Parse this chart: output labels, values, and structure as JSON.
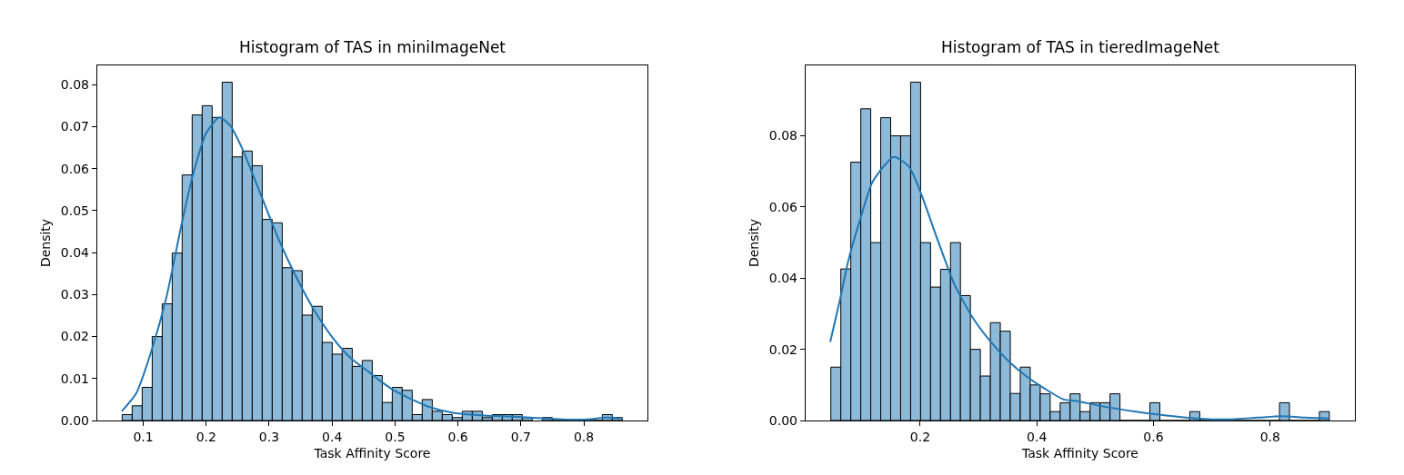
{
  "chart_data": [
    {
      "type": "histogram",
      "title": "Histogram of TAS in miniImageNet",
      "xlabel": "Task Affinity Score",
      "ylabel": "Density",
      "color": "#8ebad9",
      "bins": [
        0.0665,
        0.0824,
        0.0983,
        0.1142,
        0.1301,
        0.146,
        0.1618,
        0.1777,
        0.1936,
        0.2095,
        0.2254,
        0.2413,
        0.2572,
        0.2731,
        0.289,
        0.3049,
        0.3208,
        0.3366,
        0.3525,
        0.3684,
        0.3843,
        0.4002,
        0.4161,
        0.432,
        0.4479,
        0.4638,
        0.4797,
        0.4956,
        0.5114,
        0.5273,
        0.5432,
        0.5591,
        0.575,
        0.5909,
        0.6068,
        0.6227,
        0.6386,
        0.6545,
        0.6704,
        0.6862,
        0.7021,
        0.718,
        0.7339,
        0.7498,
        0.7657,
        0.7816,
        0.7975,
        0.8134,
        0.8293,
        0.8452,
        0.861
      ],
      "values": [
        0.0014,
        0.0035,
        0.0079,
        0.02,
        0.0278,
        0.0399,
        0.0585,
        0.0728,
        0.075,
        0.0722,
        0.0806,
        0.0628,
        0.0642,
        0.0607,
        0.0479,
        0.0471,
        0.0364,
        0.0357,
        0.0251,
        0.0272,
        0.0186,
        0.0158,
        0.0172,
        0.0129,
        0.0143,
        0.0107,
        0.0043,
        0.0079,
        0.0072,
        0.0014,
        0.005,
        0.0022,
        0.0014,
        0.0007,
        0.0022,
        0.0022,
        0.0007,
        0.0014,
        0.0014,
        0.0014,
        0.0007,
        null,
        0.0007,
        0,
        0,
        0,
        0,
        0,
        0.0014,
        0.0007
      ],
      "series": [
        {
          "type": "line",
          "color": "#1f77b4",
          "x": [
            0.0658,
            0.0889,
            0.113,
            0.137,
            0.161,
            0.18,
            0.2,
            0.221,
            0.238,
            0.257,
            0.286,
            0.315,
            0.344,
            0.373,
            0.402,
            0.43,
            0.459,
            0.474,
            0.498,
            0.527,
            0.555,
            0.594,
            0.642,
            0.69,
            0.738,
            0.786,
            0.815,
            0.834,
            0.858
          ],
          "values": [
            0.0022,
            0.0065,
            0.0166,
            0.0295,
            0.0468,
            0.0591,
            0.0685,
            0.0722,
            0.0703,
            0.0649,
            0.0541,
            0.0432,
            0.0339,
            0.0259,
            0.0195,
            0.0148,
            0.0115,
            0.0097,
            0.0072,
            0.005,
            0.0032,
            0.0018,
            0.0012,
            0.0009,
            0.0005,
            0.0002,
            0.0004,
            0.0007,
            0.0005
          ]
        }
      ],
      "xlim": [
        0.027,
        0.901
      ],
      "ylim": [
        0,
        0.0846
      ],
      "xticks": [
        0.1,
        0.2,
        0.3,
        0.4,
        0.5,
        0.6,
        0.7,
        0.8
      ],
      "yticks": [
        {
          "value": 0,
          "label": "0.00"
        },
        {
          "value": 0.01,
          "label": "0.01"
        },
        {
          "value": 0.02,
          "label": "0.02"
        },
        {
          "value": 0.03,
          "label": "0.03"
        },
        {
          "value": 0.04,
          "label": "0.04"
        },
        {
          "value": 0.05,
          "label": "0.05"
        },
        {
          "value": 0.06,
          "label": "0.06"
        },
        {
          "value": 0.07,
          "label": "0.07"
        },
        {
          "value": 0.08,
          "label": "0.08"
        }
      ]
    },
    {
      "type": "histogram",
      "title": "Histogram of TAS in tieredImageNet",
      "xlabel": "Task Affinity Score",
      "ylabel": "Density",
      "color": "#8ebad9",
      "bins": [
        0.0468,
        0.0639,
        0.081,
        0.0981,
        0.1152,
        0.1323,
        0.1494,
        0.1665,
        0.1836,
        0.2007,
        0.2178,
        0.2349,
        0.252,
        0.269,
        0.2861,
        0.3032,
        0.3203,
        0.3374,
        0.3545,
        0.3716,
        0.3887,
        0.4058,
        0.4229,
        0.44,
        0.4571,
        0.4742,
        0.4913,
        0.5084,
        0.5255,
        0.5426,
        0.5597,
        0.5768,
        0.5939,
        0.611,
        0.6281,
        0.6452,
        0.6623,
        0.6794,
        0.6965,
        0.7136,
        0.7307,
        0.7477,
        0.7648,
        0.7819,
        0.799,
        0.8161,
        0.8332,
        0.8503,
        0.8674,
        0.8845,
        0.9016
      ],
      "values": [
        0.015,
        0.0426,
        0.0726,
        0.0876,
        0.05,
        0.0851,
        0.08,
        0.08,
        0.0951,
        0.05,
        0.0375,
        0.0425,
        0.05,
        0.0351,
        0.02,
        0.0125,
        0.0275,
        0.0251,
        0.0076,
        0.015,
        0.01,
        0.0075,
        0.0025,
        0.005,
        0.0075,
        0.0025,
        0.005,
        0.005,
        0.0075,
        0,
        0,
        0,
        0.005,
        0,
        0,
        0,
        0.0025,
        0,
        0,
        0,
        0,
        0,
        0,
        0,
        0,
        0.005,
        0,
        0,
        0,
        0.0025
      ],
      "series": [
        {
          "type": "line",
          "color": "#1f77b4",
          "x": [
            0.0457,
            0.0613,
            0.0769,
            0.0978,
            0.1185,
            0.1548,
            0.181,
            0.2016,
            0.2276,
            0.2588,
            0.29,
            0.321,
            0.352,
            0.383,
            0.414,
            0.446,
            0.4665,
            0.5185,
            0.57,
            0.622,
            0.674,
            0.726,
            0.778,
            0.82,
            0.861,
            0.9
          ],
          "values": [
            0.0221,
            0.0331,
            0.045,
            0.0569,
            0.0671,
            0.0741,
            0.0713,
            0.0637,
            0.0518,
            0.0382,
            0.0289,
            0.0221,
            0.0166,
            0.0123,
            0.0089,
            0.0059,
            0.0055,
            0.0038,
            0.0025,
            0.0014,
            0.0006,
            0.0003,
            0.0008,
            0.0012,
            0.0008,
            0.0006
          ]
        }
      ],
      "xlim": [
        0.0036,
        0.9454
      ],
      "ylim": [
        0,
        0.0998
      ],
      "xticks": [
        0.2,
        0.4,
        0.6,
        0.8
      ],
      "yticks": [
        {
          "value": 0,
          "label": "0.00"
        },
        {
          "value": 0.02,
          "label": "0.02"
        },
        {
          "value": 0.04,
          "label": "0.04"
        },
        {
          "value": 0.06,
          "label": "0.06"
        },
        {
          "value": 0.08,
          "label": "0.08"
        }
      ]
    }
  ]
}
